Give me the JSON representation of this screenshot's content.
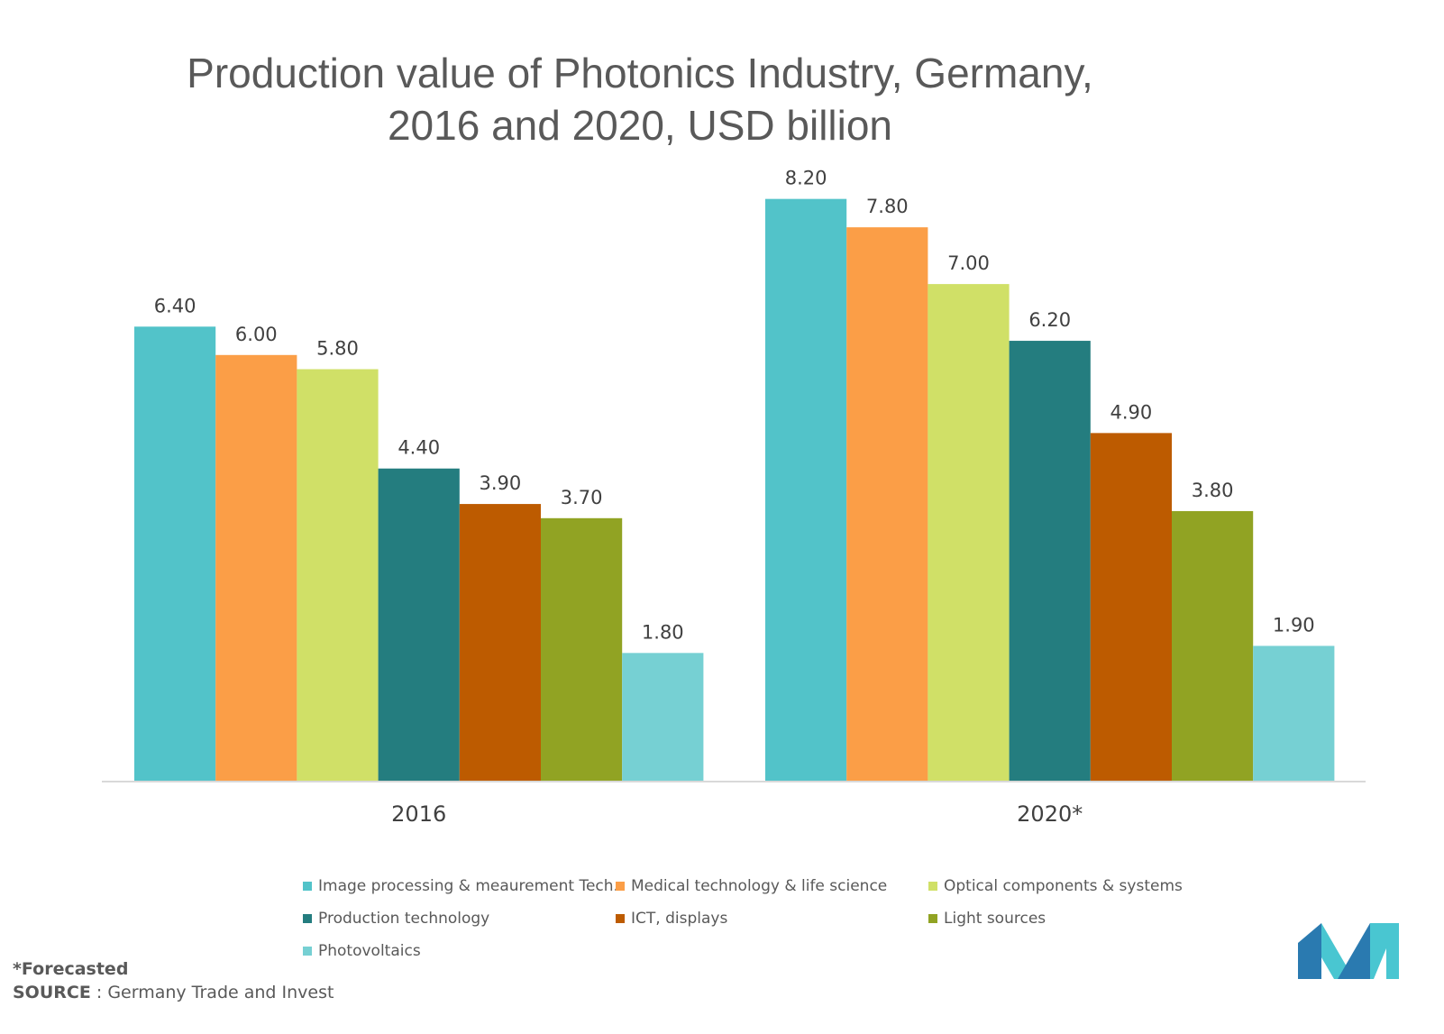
{
  "chart_data": {
    "type": "bar",
    "title": "Production value of Photonics Industry, Germany, 2016 and 2020, USD billion",
    "categories": [
      "2016",
      "2020*"
    ],
    "series": [
      {
        "name": "Image processing & meaurement Tech.",
        "color": "#52C3C9",
        "values": [
          6.4,
          8.2
        ],
        "labels": [
          "6.40",
          "8.20"
        ]
      },
      {
        "name": "Medical technology & life science",
        "color": "#FB9E47",
        "values": [
          6.0,
          7.8
        ],
        "labels": [
          "6.00",
          "7.80"
        ]
      },
      {
        "name": "Optical components & systems",
        "color": "#D0E067",
        "values": [
          5.8,
          7.0
        ],
        "labels": [
          "5.80",
          "7.00"
        ]
      },
      {
        "name": "Production technology",
        "color": "#247D7F",
        "values": [
          4.4,
          6.2
        ],
        "labels": [
          "4.40",
          "6.20"
        ]
      },
      {
        "name": "ICT, displays",
        "color": "#BD5B00",
        "values": [
          3.9,
          4.9
        ],
        "labels": [
          "3.90",
          "4.90"
        ]
      },
      {
        "name": "Light sources",
        "color": "#91A323",
        "values": [
          3.7,
          3.8
        ],
        "labels": [
          "3.70",
          "3.80"
        ]
      },
      {
        "name": "Photovoltaics",
        "color": "#76D0D3",
        "values": [
          1.8,
          1.9
        ],
        "labels": [
          "1.80",
          "1.90"
        ]
      }
    ],
    "ylim": [
      0,
      8.2
    ],
    "grid": false,
    "legend_position": "bottom"
  },
  "footnote": {
    "forecast_note": "*Forecasted",
    "source_label": "SOURCE",
    "source_text": ": Germany Trade and Invest"
  },
  "logo": {
    "icon": "mordor-intelligence-logo-icon",
    "colors": [
      "#2A7AB0",
      "#49C6D1"
    ]
  }
}
